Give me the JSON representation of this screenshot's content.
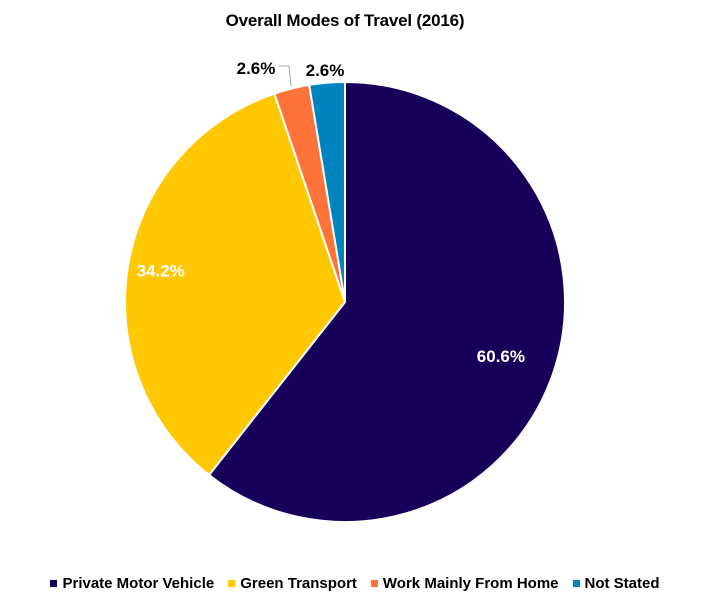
{
  "chart_data": {
    "type": "pie",
    "title": "Overall Modes of Travel (2016)",
    "slices": [
      {
        "label": "Private Motor Vehicle",
        "value": 60.6,
        "value_label": "60.6%",
        "color": "#160059"
      },
      {
        "label": "Green Transport",
        "value": 34.2,
        "value_label": "34.2%",
        "color": "#FFC800"
      },
      {
        "label": "Work Mainly From Home",
        "value": 2.6,
        "value_label": "2.6%",
        "color": "#FF7338"
      },
      {
        "label": "Not Stated",
        "value": 2.6,
        "value_label": "2.6%",
        "color": "#0084C0"
      }
    ],
    "legend_position": "bottom"
  }
}
